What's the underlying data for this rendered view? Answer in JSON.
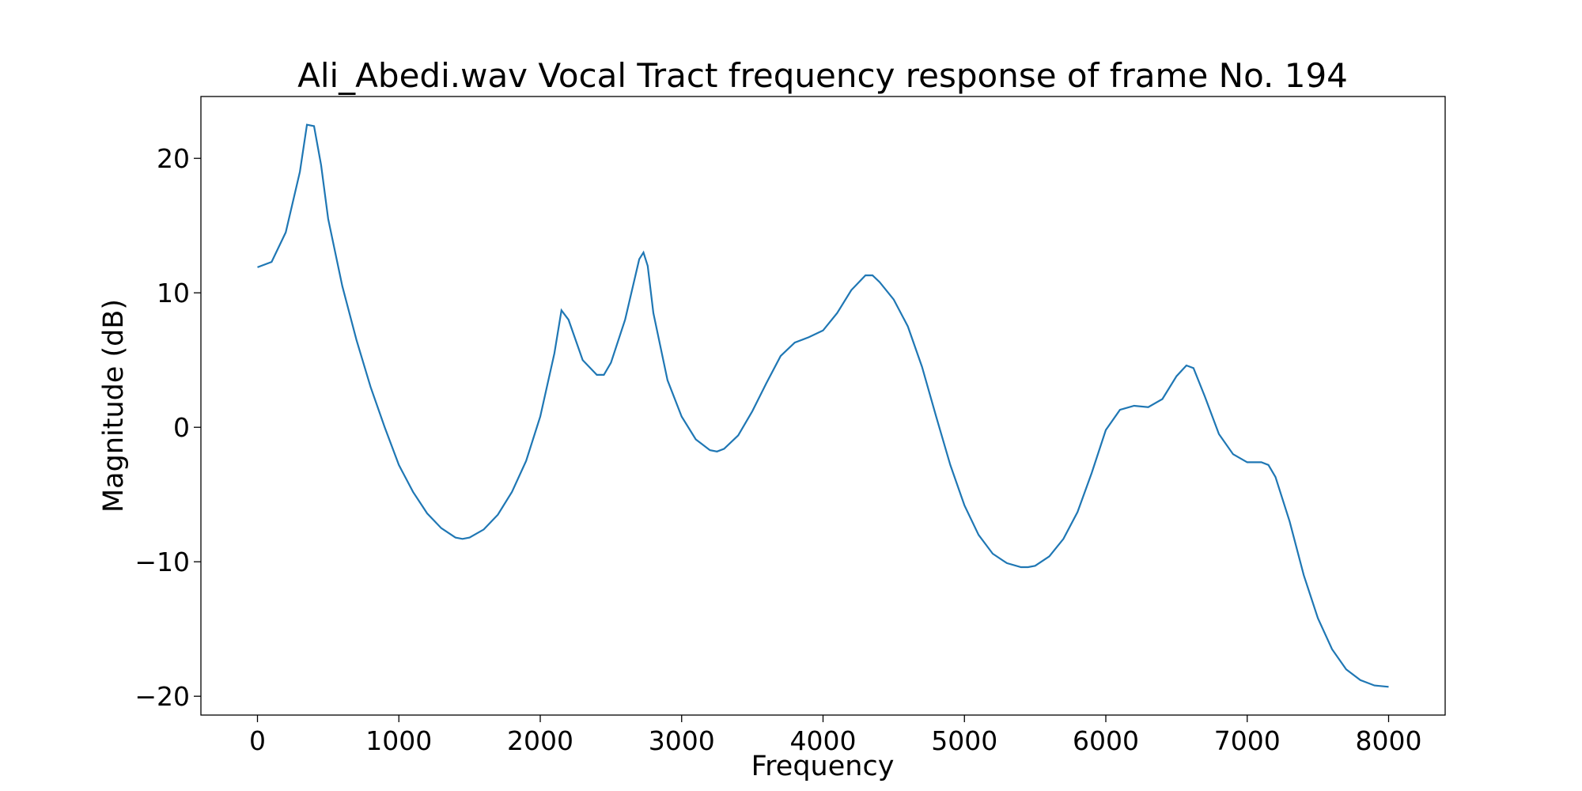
{
  "chart_data": {
    "type": "line",
    "title": "Ali_Abedi.wav Vocal Tract frequency response of frame No. 194",
    "x_label": "Frequency",
    "y_label": "Magnitude (dB)",
    "x": [
      0,
      100,
      200,
      300,
      350,
      400,
      450,
      500,
      600,
      700,
      800,
      900,
      1000,
      1100,
      1200,
      1300,
      1400,
      1450,
      1500,
      1600,
      1700,
      1800,
      1900,
      2000,
      2100,
      2150,
      2200,
      2300,
      2400,
      2450,
      2500,
      2600,
      2700,
      2730,
      2760,
      2800,
      2900,
      3000,
      3100,
      3200,
      3250,
      3300,
      3400,
      3500,
      3600,
      3700,
      3800,
      3900,
      4000,
      4100,
      4200,
      4300,
      4350,
      4400,
      4500,
      4600,
      4700,
      4800,
      4900,
      5000,
      5100,
      5200,
      5300,
      5400,
      5450,
      5500,
      5600,
      5700,
      5800,
      5900,
      6000,
      6100,
      6200,
      6300,
      6400,
      6500,
      6570,
      6620,
      6700,
      6800,
      6900,
      7000,
      7100,
      7150,
      7200,
      7300,
      7400,
      7500,
      7600,
      7700,
      7800,
      7900,
      8000
    ],
    "series": [
      {
        "color": "#1f77b4",
        "values": [
          11.9,
          12.3,
          14.5,
          19.0,
          22.5,
          22.4,
          19.5,
          15.5,
          10.5,
          6.5,
          3.0,
          0,
          -2.8,
          -4.8,
          -6.4,
          -7.5,
          -8.2,
          -8.3,
          -8.2,
          -7.6,
          -6.5,
          -4.8,
          -2.5,
          0.8,
          5.5,
          8.7,
          8.0,
          5.0,
          3.9,
          3.9,
          4.8,
          8.0,
          12.5,
          13.0,
          12.0,
          8.5,
          3.5,
          0.8,
          -0.9,
          -1.7,
          -1.8,
          -1.6,
          -0.6,
          1.2,
          3.3,
          5.3,
          6.3,
          6.7,
          7.2,
          8.5,
          10.2,
          11.3,
          11.3,
          10.8,
          9.5,
          7.5,
          4.5,
          0.8,
          -2.8,
          -5.8,
          -8.0,
          -9.4,
          -10.1,
          -10.4,
          -10.4,
          -10.3,
          -9.6,
          -8.3,
          -6.3,
          -3.4,
          -0.2,
          1.3,
          1.6,
          1.5,
          2.1,
          3.8,
          4.6,
          4.4,
          2.3,
          -0.5,
          -2.0,
          -2.6,
          -2.6,
          -2.8,
          -3.7,
          -7.0,
          -11.0,
          -14.2,
          -16.5,
          -18.0,
          -18.8,
          -19.2,
          -19.3
        ]
      }
    ],
    "xlim": [
      -400,
      8400
    ],
    "ylim": [
      -21.4,
      24.6
    ],
    "xticks": [
      0,
      1000,
      2000,
      3000,
      4000,
      5000,
      6000,
      7000,
      8000
    ],
    "yticks": [
      {
        "value": -20,
        "label": "−20"
      },
      {
        "value": -10,
        "label": "−10"
      },
      0,
      10,
      20
    ],
    "grid": false
  }
}
